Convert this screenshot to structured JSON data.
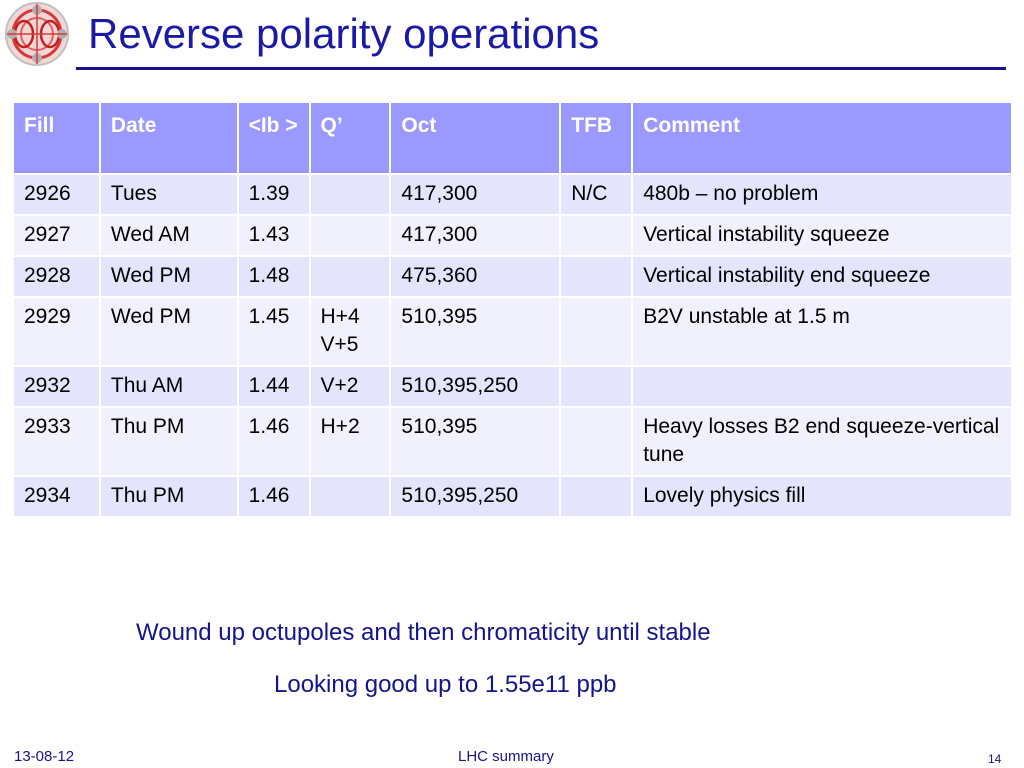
{
  "slide": {
    "title": "Reverse polarity operations",
    "accent_color": "#1a1aa6",
    "header_color": "#9999ff",
    "logo_icon": "lhc-logo-icon"
  },
  "table": {
    "headers": [
      "Fill",
      "Date",
      "<Ib >",
      "Q’",
      "Oct",
      "TFB",
      "Comment"
    ],
    "rows": [
      [
        "2926",
        "Tues",
        "1.39",
        "",
        "417,300",
        "N/C",
        "480b – no problem"
      ],
      [
        "2927",
        "Wed AM",
        "1.43",
        "",
        "417,300",
        "",
        "Vertical instability squeeze"
      ],
      [
        "2928",
        "Wed PM",
        "1.48",
        "",
        "475,360",
        "",
        "Vertical instability end squeeze"
      ],
      [
        "2929",
        "Wed PM",
        "1.45",
        "H+4 V+5",
        "510,395",
        "",
        "B2V unstable at 1.5 m"
      ],
      [
        "2932",
        "Thu AM",
        "1.44",
        "V+2",
        "510,395,250",
        "",
        ""
      ],
      [
        "2933",
        "Thu PM",
        "1.46",
        "H+2",
        "510,395",
        "",
        "Heavy losses B2 end squeeze-vertical tune"
      ],
      [
        "2934",
        "Thu PM",
        "1.46",
        "",
        "510,395,250",
        "",
        "Lovely physics fill"
      ]
    ]
  },
  "notes": {
    "line1": "Wound up octupoles and then chromaticity until stable",
    "line2": "Looking good up to 1.55e11 ppb"
  },
  "footer": {
    "date": "13-08-12",
    "center": "LHC summary",
    "page": "14"
  }
}
